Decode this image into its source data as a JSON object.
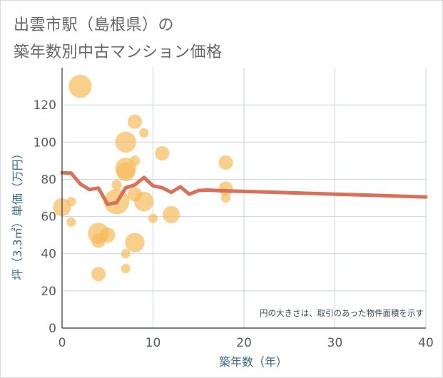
{
  "title_line1": "出雲市駅（島根県）の",
  "title_line2": "築年数別中古マンション価格",
  "chart_data": {
    "type": "scatter",
    "title": "出雲市駅（島根県）の築年数別中古マンション価格",
    "xlabel": "築年数（年）",
    "ylabel": "坪（3.3㎡）単価（万円）",
    "xlim": [
      0,
      40
    ],
    "ylim": [
      0,
      140
    ],
    "xticks": [
      0,
      10,
      20,
      30,
      40
    ],
    "yticks": [
      0,
      20,
      40,
      60,
      80,
      100,
      120
    ],
    "grid": true,
    "note": "円の大きさは、取引のあった物件面積を示す",
    "colors": {
      "bubble": "#f5b955",
      "line": "#d9705a",
      "grid": "#c9d3e0",
      "axis": "#2a3440"
    },
    "points": [
      {
        "x": 2,
        "y": 130,
        "size": 90
      },
      {
        "x": 0,
        "y": 65,
        "size": 55
      },
      {
        "x": 1,
        "y": 68,
        "size": 15
      },
      {
        "x": 1,
        "y": 57,
        "size": 15
      },
      {
        "x": 4,
        "y": 51,
        "size": 75
      },
      {
        "x": 4,
        "y": 47,
        "size": 35
      },
      {
        "x": 4,
        "y": 29,
        "size": 35
      },
      {
        "x": 5,
        "y": 50,
        "size": 40
      },
      {
        "x": 6,
        "y": 68,
        "size": 110
      },
      {
        "x": 6,
        "y": 77,
        "size": 18
      },
      {
        "x": 7,
        "y": 100,
        "size": 75
      },
      {
        "x": 7,
        "y": 86,
        "size": 75
      },
      {
        "x": 7,
        "y": 84,
        "size": 60
      },
      {
        "x": 7,
        "y": 40,
        "size": 15
      },
      {
        "x": 7,
        "y": 32,
        "size": 15
      },
      {
        "x": 8,
        "y": 111,
        "size": 35
      },
      {
        "x": 8,
        "y": 90,
        "size": 18
      },
      {
        "x": 8,
        "y": 72,
        "size": 35
      },
      {
        "x": 8,
        "y": 46,
        "size": 65
      },
      {
        "x": 9,
        "y": 105,
        "size": 15
      },
      {
        "x": 9,
        "y": 68,
        "size": 65
      },
      {
        "x": 10,
        "y": 59,
        "size": 15
      },
      {
        "x": 11,
        "y": 94,
        "size": 35
      },
      {
        "x": 12,
        "y": 61,
        "size": 50
      },
      {
        "x": 18,
        "y": 89,
        "size": 35
      },
      {
        "x": 18,
        "y": 75,
        "size": 35
      },
      {
        "x": 18,
        "y": 70,
        "size": 15
      }
    ],
    "trend": {
      "x": [
        0,
        1,
        2,
        3,
        4,
        5,
        6,
        7,
        8,
        9,
        10,
        11,
        12,
        13,
        14,
        15,
        16,
        17,
        18,
        20,
        25,
        30,
        35,
        40
      ],
      "y": [
        83.5,
        83.3,
        77.5,
        74.5,
        75.3,
        66.5,
        67.5,
        75.5,
        77,
        81,
        76.5,
        75.5,
        73,
        76,
        72,
        74,
        74.2,
        74,
        73.8,
        73.5,
        72.8,
        72,
        71.3,
        70.5
      ]
    }
  }
}
